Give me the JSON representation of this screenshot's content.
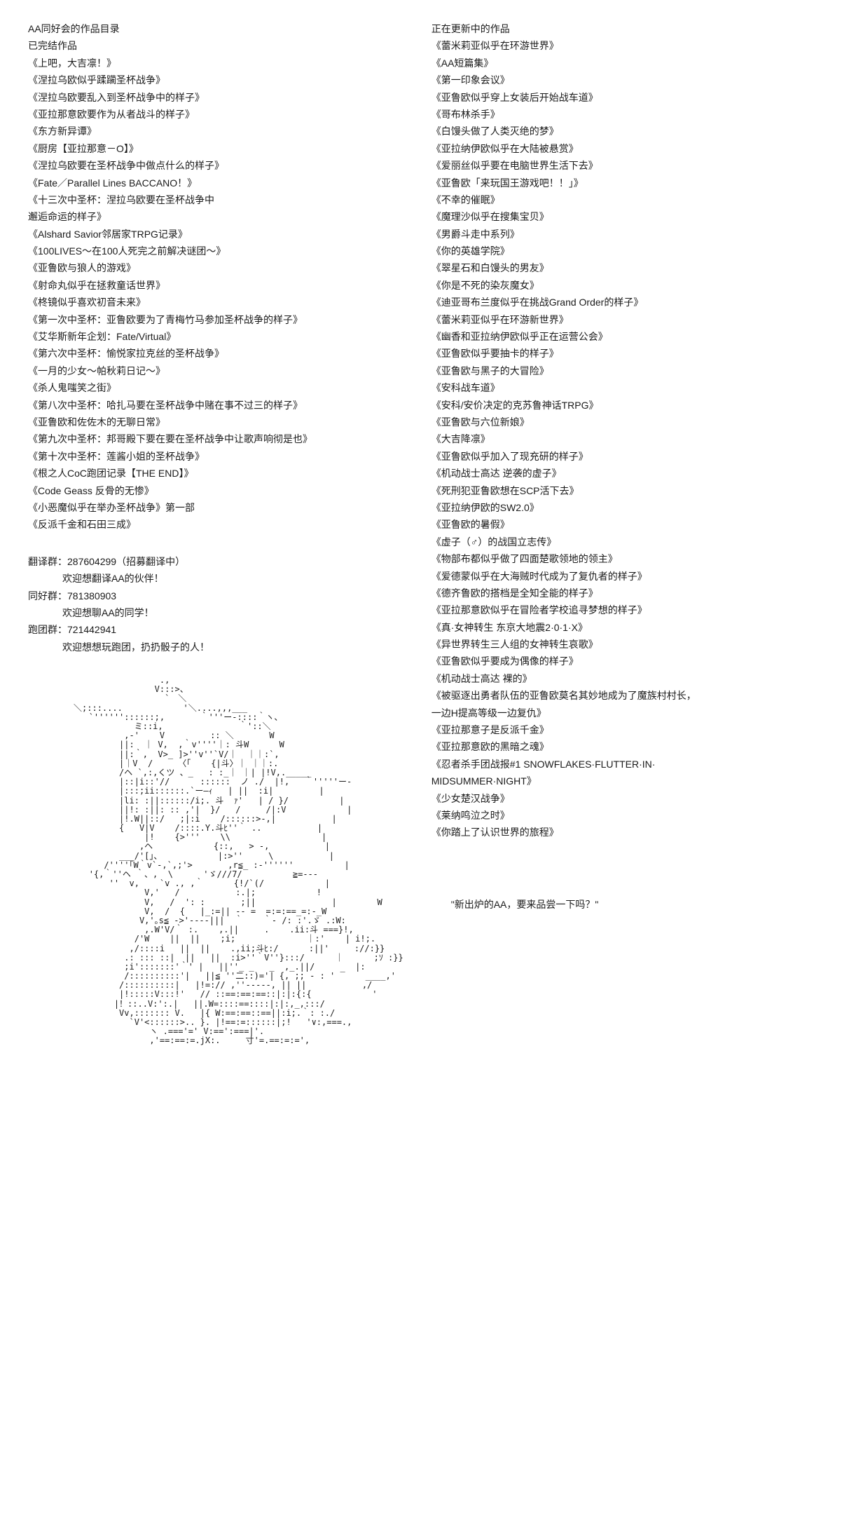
{
  "left": {
    "header": "AA同好会的作品目录",
    "completed_title": "已完结作品",
    "completed_works": [
      "《上吧，大吉凛！》",
      "《涅拉乌欧似乎蹂躏圣杯战争》",
      "《涅拉乌欧要乱入到圣杯战争中的样子》",
      "《亚拉那意欧要作为从者战斗的样子》",
      "《东方新异谭》",
      "《厨房【亚拉那意－O】》",
      "《涅拉乌欧要在圣杯战争中做点什么的样子》",
      "《Fate／Parallel Lines BACCANO！》",
      "《十三次中圣杯：涅拉乌欧要在圣杯战争中",
      "    邂逅命运的样子》",
      "《Alshard Savior邻居家TRPG记录》",
      "《100LIVES～在100人死完之前解决谜团～》",
      "《亚鲁欧与狼人的游戏》",
      "《射命丸似乎在拯救童话世界》",
      "《柊镜似乎喜欢初音未来》",
      "《第一次中圣杯：亚鲁欧要为了青梅竹马参加圣杯战争的样子》",
      "《艾华斯新年企划：Fate/Virtual》",
      "《第六次中圣杯：愉悦家拉克丝的圣杯战争》",
      "《一月的少女～帕秋莉日记～》",
      "《杀人鬼嗤笑之街》",
      "《第八次中圣杯：哈扎马要在圣杯战争中赌在事不过三的样子》",
      "《亚鲁欧和佐佐木的无聊日常》",
      "《第九次中圣杯：邦哥殿下要在要在圣杯战争中让歌声响彻是也》",
      "《第十次中圣杯：莲酱小姐的圣杯战争》",
      "《根之人CoC跑团记录【THE END】》",
      "《Code Geass 反骨的无惨》",
      "《小恶魔似乎在举办圣杯战争》第一部",
      "《反派千金和石田三成》"
    ],
    "groups": [
      {
        "label": "翻译群：287604299（招募翻译中）",
        "sub": "欢迎想翻译AA的伙伴！"
      },
      {
        "label": "同好群：781380903",
        "sub": "欢迎想聊AA的同学！"
      },
      {
        "label": "跑团群：721442941",
        "sub": "欢迎想想玩跑团，扔扔骰子的人！"
      }
    ]
  },
  "right": {
    "updating_title": "正在更新中的作品",
    "updating_works": [
      "《蕾米莉亚似乎在环游世界》",
      "《AA短篇集》",
      "《第一印象会议》",
      "《亚鲁欧似乎穿上女装后开始战车道》",
      "《哥布林杀手》",
      "《白馒头做了人类灭绝的梦》",
      "《亚拉纳伊欧似乎在大陆被悬赏》",
      "《爱丽丝似乎要在电脑世界生活下去》",
      "《亚鲁欧「来玩国王游戏吧！！」》",
      "《不幸的催眠》",
      "《魔理沙似乎在搜集宝贝》",
      "《男爵斗走中系列》",
      "《你的英雄学院》",
      "《翠星石和白馒头的男友》",
      "《你是不死的染灰魔女》",
      "《迪亚哥布兰度似乎在挑战Grand Order的样子》",
      "《蕾米莉亚似乎在环游新世界》",
      "《幽香和亚拉纳伊欧似乎正在运营公会》",
      "《亚鲁欧似乎要抽卡的样子》",
      "《亚鲁欧与黑子的大冒险》",
      "《安科战车道》",
      "《安科/安价决定的克苏鲁神话TRPG》",
      "《亚鲁欧与六位新娘》",
      "《大吉降凛》",
      "《亚鲁欧似乎加入了现充研的样子》",
      "《机动战士高达 逆袭的虚子》",
      "《死刑犯亚鲁欧想在SCP活下去》",
      "《亚拉纳伊欧的SW2.0》",
      "《亚鲁欧的暑假》",
      "《虚子（♂）的战国立志传》",
      "《物部布都似乎做了四面楚歌领地的领主》",
      "《爱德蒙似乎在大海贼时代成为了复仇者的样子》",
      "《德齐鲁欧的搭档是全知全能的样子》",
      "《亚拉那意欧似乎在冒险者学校追寻梦想的样子》",
      "《真·女神转生 东京大地震2·0·1·X》",
      "《异世界转生三人组的女神转生哀歌》",
      "《亚鲁欧似乎要成为偶像的样子》",
      "《机动战士高达 裸的》",
      "《被驱逐出勇者队伍的亚鲁欧莫名其妙地成为了魔族村村长，",
      "一边H提高等级一边复仇》",
      "《亚拉那意子是反派千金》",
      "《亚拉那意欧的黑暗之魂》",
      "《忍者杀手团战报#1 SNOWFLAKES·FLUTTER·IN·",
      "MIDSUMMER·NIGHT》",
      "《少女楚汉战争》",
      "《莱纳鸣泣之时》",
      "《你踏上了认识世界的旅程》"
    ],
    "quote": "\"新出炉的AA，要来品尝一下吗？\""
  },
  "ascii": "                          .,\n                         V:::>、\n                           `　＼\n         ＼;:::....            '＼....,,,___\n            `''''''::::::;,       ｀'''ー-::::｀ヽ、\n                     ミ::i,               ｀'::＼\n                   ,-'    V         :: ＼       W\n                  ||:  ｜ V,  ,｀v''''｜: 斗W      W\n                  ||:｀,  V>_ ]>''v''`V/｜  ｜｜:`,\n                  |｜V  /     〈｢    {|斗〉｜ ｜｜:.\n                  /ヘ `,:,くツ 、_   : :_｜ ｜| |!V,._____\n                  |::|i::'//      ::::::  ノ ./  |!,   ｀'''''ー-\n                  |:::;ii::::::.`ー―ｨ   | ||  :i|         |\n                  |li: :||::::::/i;. 斗  ｧ'   | / }/          |\n                  ||!: :||: :: ,'|  }/   /     /|:V            |\n                  |!.W||::/   ;|:i    /::::::>-,|           |\n                  {   V|V    /::::.Y.斗ﾋ''｀ ..           |\n                       |!    {>'''    \\\\                  |\n                      ,ヘ            {::,   > -,           |\n                  ___/'[｣、           |:>''     \\           |\n               /''''｢W｀v`-,`,;'>       ,r≦_ :-''''''          |\n            '{,｀''ヘ ｀、,  \\      'ゞ///7/          ≧=---\n                ''  v,    `v ., ,｀      {!/`(/            |\n                       V,'   /           :.|;            !\n                       V,   /  ': :       ;||               |        W\n                       V,  /  {   |_:=|| -- =  =:=:==_=:-_W\n                      V,'｡s≦ ->'----|||  ｀    ｀- /: :'.ゞ .:W:\n                       ,.W'V/｀ :.    ,.||     .    .ii:斗 ===}!,\n                     /'W    ||  ||    ;i;              ｜:'    | i!;.\n                    ,/::::i   ||  ||    .,ii;斗ﾋ:/      :||'     ://:}}\n                   .: ::: ::|  ||   ||  :i>''｀V''}:::/      ｜      ;ｿ :}}\n                   ;i':::::::'｀' |   ||''_ _   _  ,_.||/        |:\n                   /::::::::::'|   ||≦ ''二::)='| {, ;; - : ' ‾    ____,'\n                  /::::::::::|   |!=:// ,''-----, || ||           ,/\n                  |!:::::V:::!'   // ::==:==:==::|:|:{:{            '\n                 |！::..V:':.|   ||.W=::::==::::|:|:,_,:::/\n                  Vv,::::::: V.   |{ W:==:==::==||:i;.｀: :./\n                    `V'<::::::>.. }. |!==:=::::::|;!   '∨:,===.,\n                        ヽ .==='=' V:==':===|'.\n                        ,'==:==:=.jX:.     寸'=.==:=:=',"
}
